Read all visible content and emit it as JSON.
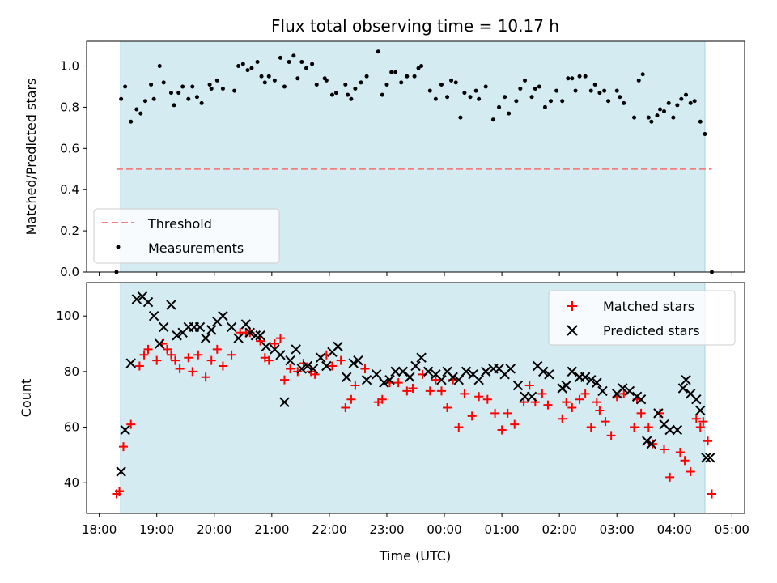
{
  "colors": {
    "span": "#d4ebf2",
    "span_edge": "#a9d3e0",
    "threshold": "#f07f7f",
    "measurement": "#000000",
    "matched": "#ff0000",
    "predicted": "#000000"
  },
  "chart_data": [
    {
      "type": "scatter",
      "title": "Flux total observing time = 10.17 h",
      "xlabel": "",
      "ylabel": "Matched/Predicted stars",
      "ylim": [
        0,
        1.12
      ],
      "yticks": [
        "0.0",
        "0.2",
        "0.4",
        "0.6",
        "0.8",
        "1.0"
      ],
      "xlim_hours": [
        17.78,
        29.22
      ],
      "observing_span_hours": [
        18.37,
        28.53
      ],
      "threshold": {
        "name": "Threshold",
        "value": 0.5
      },
      "legend": {
        "placement": "lower-left",
        "entries": [
          "Threshold",
          "Measurements"
        ]
      },
      "series": [
        {
          "name": "Measurements",
          "marker": "dot",
          "x": [
            18.3,
            18.38,
            18.45,
            18.55,
            18.65,
            18.72,
            18.8,
            18.9,
            18.95,
            19.05,
            19.12,
            19.25,
            19.3,
            19.38,
            19.45,
            19.55,
            19.62,
            19.7,
            19.78,
            19.92,
            19.95,
            20.05,
            20.15,
            20.35,
            20.42,
            20.5,
            20.58,
            20.65,
            20.75,
            20.82,
            20.88,
            20.95,
            21.05,
            21.15,
            21.22,
            21.3,
            21.38,
            21.45,
            21.52,
            21.6,
            21.7,
            21.78,
            21.92,
            21.95,
            22.05,
            22.12,
            22.28,
            22.32,
            22.38,
            22.45,
            22.55,
            22.65,
            22.85,
            22.92,
            23.0,
            23.08,
            23.15,
            23.25,
            23.35,
            23.48,
            23.55,
            23.6,
            23.75,
            23.85,
            23.95,
            24.05,
            24.12,
            24.2,
            24.28,
            24.35,
            24.45,
            24.55,
            24.6,
            24.72,
            24.85,
            24.95,
            25.05,
            25.12,
            25.25,
            25.32,
            25.4,
            25.52,
            25.58,
            25.65,
            25.75,
            25.85,
            25.95,
            26.05,
            26.15,
            26.22,
            26.28,
            26.35,
            26.45,
            26.55,
            26.62,
            26.7,
            26.78,
            26.85,
            27.0,
            27.05,
            27.12,
            27.3,
            27.38,
            27.45,
            27.55,
            27.6,
            27.7,
            27.75,
            27.82,
            27.9,
            27.98,
            28.05,
            28.12,
            28.2,
            28.28,
            28.35,
            28.45,
            28.53,
            28.65
          ],
          "y": [
            0.0,
            0.84,
            0.9,
            0.73,
            0.79,
            0.77,
            0.83,
            0.91,
            0.84,
            1.0,
            0.92,
            0.87,
            0.81,
            0.87,
            0.9,
            0.84,
            0.9,
            0.85,
            0.82,
            0.91,
            0.89,
            0.93,
            0.89,
            0.88,
            1.0,
            1.01,
            0.98,
            0.99,
            1.02,
            0.95,
            0.92,
            0.95,
            0.93,
            1.04,
            0.9,
            1.02,
            1.05,
            0.94,
            1.02,
            0.99,
            1.01,
            0.91,
            0.94,
            0.93,
            0.86,
            0.87,
            0.91,
            0.86,
            0.84,
            0.89,
            0.92,
            0.95,
            1.07,
            0.86,
            0.91,
            0.97,
            0.97,
            0.92,
            0.95,
            0.95,
            0.99,
            1.0,
            0.88,
            0.84,
            0.91,
            0.85,
            0.93,
            0.92,
            0.75,
            0.87,
            0.85,
            0.88,
            0.84,
            0.9,
            0.74,
            0.8,
            0.85,
            0.77,
            0.83,
            0.89,
            0.93,
            0.85,
            0.89,
            0.9,
            0.8,
            0.83,
            0.88,
            0.83,
            0.94,
            0.94,
            0.88,
            0.95,
            0.95,
            0.88,
            0.91,
            0.87,
            0.88,
            0.83,
            0.88,
            0.85,
            0.82,
            0.75,
            0.93,
            0.96,
            0.75,
            0.73,
            0.76,
            0.79,
            0.78,
            0.82,
            0.75,
            0.81,
            0.84,
            0.86,
            0.82,
            0.83,
            0.73,
            0.67,
            0.0
          ]
        }
      ]
    },
    {
      "type": "scatter",
      "title": "",
      "xlabel": "Time (UTC)",
      "ylabel": "Count",
      "ylim": [
        29,
        112
      ],
      "yticks": [
        40,
        60,
        80,
        100
      ],
      "xlim_hours": [
        17.78,
        29.22
      ],
      "observing_span_hours": [
        18.37,
        28.53
      ],
      "categories": [
        "18:00",
        "19:00",
        "20:00",
        "21:00",
        "22:00",
        "23:00",
        "00:00",
        "01:00",
        "02:00",
        "03:00",
        "04:00",
        "05:00"
      ],
      "legend": {
        "placement": "upper-right",
        "entries": [
          "Matched stars",
          "Predicted stars"
        ]
      },
      "series": [
        {
          "name": "Matched stars",
          "marker": "plus",
          "x": [
            18.3,
            18.35,
            18.42,
            18.55,
            18.7,
            18.78,
            18.85,
            19.0,
            19.1,
            19.18,
            19.25,
            19.32,
            19.4,
            19.55,
            19.62,
            19.72,
            19.85,
            19.95,
            20.05,
            20.15,
            20.3,
            20.45,
            20.55,
            20.62,
            20.8,
            20.88,
            20.95,
            21.05,
            21.15,
            21.22,
            21.32,
            21.45,
            21.55,
            21.68,
            21.75,
            21.95,
            22.05,
            22.2,
            22.28,
            22.38,
            22.45,
            22.62,
            22.85,
            22.92,
            23.05,
            23.2,
            23.35,
            23.45,
            23.62,
            23.75,
            23.85,
            23.95,
            24.05,
            24.15,
            24.25,
            24.35,
            24.48,
            24.6,
            24.75,
            24.88,
            25.0,
            25.1,
            25.22,
            25.38,
            25.48,
            25.58,
            25.7,
            25.8,
            26.05,
            26.12,
            26.22,
            26.35,
            26.45,
            26.55,
            26.65,
            26.7,
            26.8,
            26.9,
            27.0,
            27.12,
            27.3,
            27.35,
            27.42,
            27.55,
            27.62,
            27.75,
            27.82,
            27.92,
            28.1,
            28.18,
            28.28,
            28.38,
            28.45,
            28.5,
            28.58,
            28.65
          ],
          "y": [
            36,
            37,
            53,
            61,
            82,
            86,
            88,
            84,
            90,
            88,
            86,
            84,
            81,
            85,
            80,
            86,
            78,
            84,
            88,
            82,
            86,
            94,
            94,
            94,
            91,
            85,
            84,
            90,
            92,
            77,
            81,
            80,
            83,
            80,
            79,
            86,
            82,
            84,
            67,
            70,
            75,
            81,
            69,
            70,
            76,
            76,
            73,
            74,
            79,
            73,
            77,
            73,
            67,
            77,
            60,
            72,
            64,
            71,
            70,
            65,
            59,
            65,
            61,
            69,
            75,
            69,
            72,
            68,
            63,
            69,
            67,
            70,
            72,
            60,
            69,
            66,
            62,
            57,
            71,
            72,
            60,
            70,
            65,
            60,
            54,
            65,
            52,
            42,
            51,
            48,
            44,
            63,
            60,
            62,
            55,
            36
          ]
        },
        {
          "name": "Predicted stars",
          "marker": "x",
          "x": [
            18.38,
            18.45,
            18.55,
            18.65,
            18.75,
            18.85,
            18.95,
            19.05,
            19.12,
            19.25,
            19.35,
            19.45,
            19.55,
            19.65,
            19.75,
            19.85,
            19.95,
            20.05,
            20.15,
            20.3,
            20.42,
            20.55,
            20.62,
            20.72,
            20.8,
            20.9,
            21.05,
            21.15,
            21.22,
            21.32,
            21.42,
            21.52,
            21.62,
            21.72,
            21.85,
            21.95,
            22.05,
            22.15,
            22.3,
            22.42,
            22.5,
            22.65,
            22.82,
            22.95,
            23.05,
            23.15,
            23.28,
            23.4,
            23.5,
            23.6,
            23.72,
            23.85,
            23.95,
            24.05,
            24.15,
            24.25,
            24.38,
            24.5,
            24.6,
            24.72,
            24.85,
            24.95,
            25.05,
            25.15,
            25.28,
            25.4,
            25.52,
            25.62,
            25.72,
            25.82,
            26.05,
            26.12,
            26.22,
            26.35,
            26.45,
            26.55,
            26.65,
            26.75,
            27.0,
            27.1,
            27.22,
            27.35,
            27.42,
            27.52,
            27.6,
            27.72,
            27.82,
            27.92,
            28.05,
            28.15,
            28.2,
            28.28,
            28.38,
            28.45,
            28.55,
            28.62
          ],
          "y": [
            44,
            59,
            83,
            106,
            107,
            105,
            100,
            90,
            96,
            104,
            93,
            94,
            96,
            96,
            96,
            92,
            95,
            98,
            100,
            96,
            92,
            97,
            94,
            93,
            93,
            89,
            88,
            86,
            69,
            84,
            88,
            81,
            82,
            81,
            85,
            82,
            87,
            89,
            78,
            83,
            84,
            77,
            79,
            76,
            77,
            80,
            80,
            78,
            82,
            85,
            80,
            79,
            77,
            80,
            78,
            77,
            80,
            79,
            77,
            80,
            81,
            81,
            79,
            81,
            75,
            71,
            71,
            82,
            80,
            79,
            74,
            75,
            80,
            78,
            78,
            77,
            76,
            73,
            72,
            74,
            73,
            71,
            70,
            55,
            54,
            65,
            61,
            59,
            59,
            74,
            77,
            72,
            70,
            66,
            49,
            49
          ]
        }
      ]
    }
  ]
}
